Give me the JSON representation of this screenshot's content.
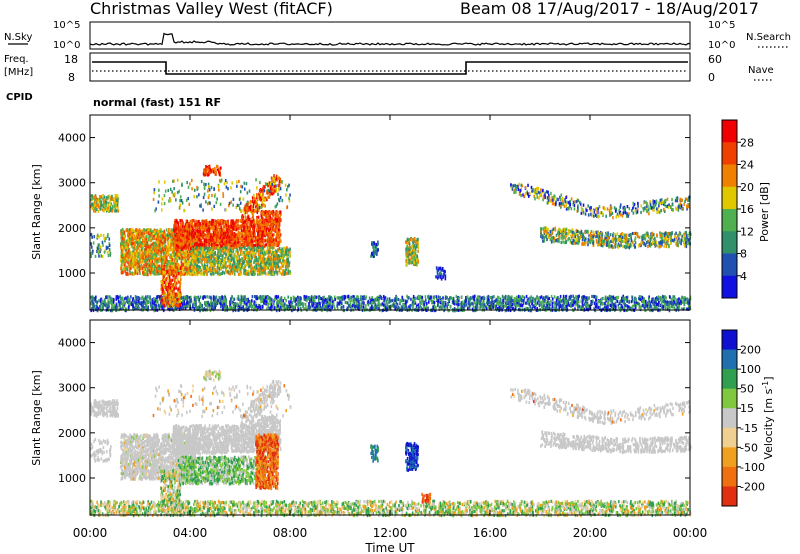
{
  "header": {
    "station": "Christmas Valley West (fitACF)",
    "beam_period": "Beam 08 17/Aug/2017 - 18/Aug/2017"
  },
  "strips": {
    "nsky_label": "N.Sky",
    "nsky_ticks": [
      "10^5",
      "10^0"
    ],
    "nsearch_label": "N.Search",
    "nsearch_ticks": [
      "10^5",
      "10^0"
    ],
    "freq_label_1": "Freq.",
    "freq_label_2": "[MHz]",
    "freq_ticks": [
      "18",
      "8"
    ],
    "nave_label": "Nave",
    "nave_ticks": [
      "60",
      "0"
    ],
    "cpid_label": "CPID",
    "cpid_value": "normal (fast) 151 RF"
  },
  "time_axis": {
    "label": "Time UT",
    "ticks": [
      "00:00",
      "04:00",
      "08:00",
      "12:00",
      "16:00",
      "20:00",
      "00:00"
    ]
  },
  "colors": {
    "power_scale": [
      "#1010e0",
      "#2050b0",
      "#30906a",
      "#50b050",
      "#e0c800",
      "#f08000",
      "#f04000",
      "#f00000"
    ],
    "velocity_scale": [
      "#1010d0",
      "#2070b0",
      "#30a050",
      "#80c840",
      "#c8c8c8",
      "#f0d090",
      "#f0a020",
      "#f07010",
      "#e03010"
    ]
  },
  "chart_data": [
    {
      "type": "heatmap",
      "name": "power",
      "ylabel": "Slant Range [km]",
      "yticks": [
        "4000",
        "3000",
        "2000",
        "1000"
      ],
      "ylim": [
        180,
        4500
      ],
      "xlim": [
        0,
        24
      ],
      "colorbar_label": "Power [dB]",
      "colorbar_ticks": [
        "28",
        "24",
        "20",
        "16",
        "12",
        "8",
        "4"
      ],
      "colorbar_range": [
        0,
        32
      ]
    },
    {
      "type": "heatmap",
      "name": "velocity",
      "ylabel": "Slant Range [km]",
      "yticks": [
        "4000",
        "3000",
        "2000",
        "1000"
      ],
      "ylim": [
        180,
        4500
      ],
      "xlim": [
        0,
        24
      ],
      "colorbar_label": "Velocity [m s",
      "colorbar_label_sup": "-1",
      "colorbar_ticks": [
        "200",
        "100",
        "50",
        "15",
        "-15",
        "-50",
        "-100",
        "-200"
      ]
    }
  ]
}
